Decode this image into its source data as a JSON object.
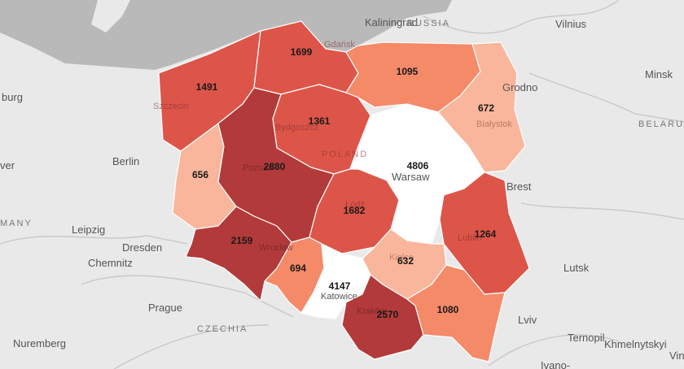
{
  "map": {
    "colors": {
      "background": "#e9e9e9",
      "sea": "#b9b9b9",
      "very_high": "#b33a3a",
      "high": "#dd5549",
      "medium": "#f58a69",
      "low": "#f9b69c",
      "lowest": "#ffffff"
    },
    "places": {
      "kaliningrad": "Kaliningrad",
      "russia": "RUSSIA",
      "vilnius": "Vilnius",
      "minsk": "Minsk",
      "belarus": "BELARU",
      "grodno": "Grodno",
      "brest": "Brest",
      "lutsk": "Lutsk",
      "lviv": "Lviv",
      "ternopil": "Ternopil",
      "khmelnytskyi": "Khmelnytskyi",
      "ivano": "Ivano-",
      "vin": "Vin",
      "berlin": "Berlin",
      "hamburg": "burg",
      "hanover": "ver",
      "germany": "MANY",
      "leipzig": "Leipzig",
      "dresden": "Dresden",
      "chemnitz": "Chemnitz",
      "prague": "Prague",
      "czechia": "CZECHIA",
      "nuremberg": "Nuremberg",
      "poland": "POLAND",
      "warsaw": "Warsaw",
      "szczecin": "Szczecin",
      "gdansk": "Gdańsk",
      "bydgoszcz": "Bydgoszcz",
      "bialystok": "Białystok",
      "poznan": "Poznań",
      "lodz": "Łódź",
      "lublin": "Lublin",
      "wroclaw": "Wrocław",
      "katowice": "Katowice",
      "krakow": "Kraków",
      "kielce": "Kielce"
    },
    "regions": [
      {
        "id": "zachodniopomorskie",
        "value": 1491,
        "level": "high"
      },
      {
        "id": "pomorskie",
        "value": 1699,
        "level": "high"
      },
      {
        "id": "warminsko-mazurskie",
        "value": 1095,
        "level": "medium"
      },
      {
        "id": "podlaskie",
        "value": 672,
        "level": "low"
      },
      {
        "id": "kujawsko-pomorskie",
        "value": 1361,
        "level": "high"
      },
      {
        "id": "lubuskie",
        "value": 656,
        "level": "low"
      },
      {
        "id": "wielkopolskie",
        "value": 2880,
        "level": "very_high"
      },
      {
        "id": "mazowieckie",
        "value": 4806,
        "level": "lowest"
      },
      {
        "id": "lodzkie",
        "value": 1682,
        "level": "high"
      },
      {
        "id": "lubelskie",
        "value": 1264,
        "level": "high"
      },
      {
        "id": "dolnoslaskie",
        "value": 2159,
        "level": "very_high"
      },
      {
        "id": "opolskie",
        "value": 694,
        "level": "medium"
      },
      {
        "id": "slaskie",
        "value": 4147,
        "level": "lowest"
      },
      {
        "id": "swietokrzyskie",
        "value": 632,
        "level": "low"
      },
      {
        "id": "malopolskie",
        "value": 2570,
        "level": "very_high"
      },
      {
        "id": "podkarpackie",
        "value": 1080,
        "level": "medium"
      }
    ]
  }
}
